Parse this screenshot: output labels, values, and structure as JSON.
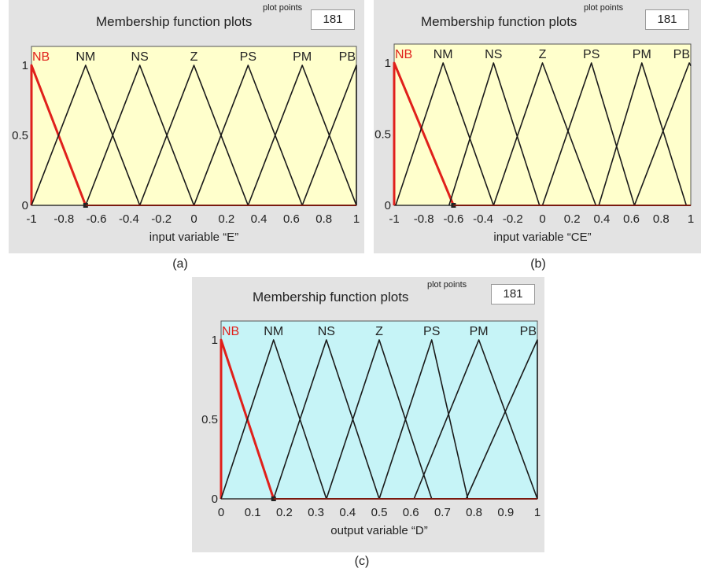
{
  "charts": [
    {
      "id": "a",
      "panel_title": "Membership function plots",
      "plot_points_label": "plot points",
      "plot_points_value": "181",
      "xlabel": "input variable “E”",
      "caption": "(a)",
      "background": "#ffffcc",
      "xticks": [
        "-1",
        "-0.8",
        "-0.6",
        "-0.4",
        "-0.2",
        "0",
        "0.2",
        "0.4",
        "0.6",
        "0.8",
        "1"
      ],
      "yticks": [
        "0",
        "0.5",
        "1"
      ]
    },
    {
      "id": "b",
      "panel_title": "Membership function plots",
      "plot_points_label": "plot points",
      "plot_points_value": "181",
      "xlabel": "input variable “CE”",
      "caption": "(b)",
      "background": "#ffffcc",
      "xticks": [
        "-1",
        "-0.8",
        "-0.6",
        "-0.4",
        "-0.2",
        "0",
        "0.2",
        "0.4",
        "0.6",
        "0.8",
        "1"
      ],
      "yticks": [
        "0",
        "0.5",
        "1"
      ]
    },
    {
      "id": "c",
      "panel_title": "Membership function plots",
      "plot_points_label": "plot points",
      "plot_points_value": "181",
      "xlabel": "output variable “D”",
      "caption": "(c)",
      "background": "#c6f4f7",
      "xticks": [
        "0",
        "0.1",
        "0.2",
        "0.3",
        "0.4",
        "0.5",
        "0.6",
        "0.7",
        "0.8",
        "0.9",
        "1"
      ],
      "yticks": [
        "0",
        "0.5",
        "1"
      ]
    }
  ],
  "chart_data": [
    {
      "type": "line",
      "title": "Membership function plots",
      "xlabel": "input variable “E”",
      "ylabel": "",
      "xlim": [
        -1,
        1
      ],
      "ylim": [
        0,
        1
      ],
      "highlight_color": "#e0201b",
      "line_color": "#1a1a1a",
      "series": [
        {
          "name": "NB",
          "x": [
            -1,
            -1,
            -0.6667
          ],
          "y": [
            0,
            1,
            0
          ],
          "highlighted": true
        },
        {
          "name": "NM",
          "x": [
            -1,
            -0.6667,
            -0.3333
          ],
          "y": [
            0,
            1,
            0
          ]
        },
        {
          "name": "NS",
          "x": [
            -0.6667,
            -0.3333,
            0
          ],
          "y": [
            0,
            1,
            0
          ]
        },
        {
          "name": "Z",
          "x": [
            -0.3333,
            0,
            0.3333
          ],
          "y": [
            0,
            1,
            0
          ]
        },
        {
          "name": "PS",
          "x": [
            0,
            0.3333,
            0.6667
          ],
          "y": [
            0,
            1,
            0
          ]
        },
        {
          "name": "PM",
          "x": [
            0.3333,
            0.6667,
            1
          ],
          "y": [
            0,
            1,
            0
          ]
        },
        {
          "name": "PB",
          "x": [
            0.6667,
            1,
            1
          ],
          "y": [
            0,
            1,
            0
          ]
        }
      ]
    },
    {
      "type": "line",
      "title": "Membership function plots",
      "xlabel": "input variable “CE”",
      "ylabel": "",
      "xlim": [
        -1,
        1
      ],
      "ylim": [
        0,
        1
      ],
      "highlight_color": "#e0201b",
      "line_color": "#1a1a1a",
      "series": [
        {
          "name": "NB",
          "x": [
            -1,
            -1,
            -0.6
          ],
          "y": [
            0,
            1,
            0
          ],
          "highlighted": true
        },
        {
          "name": "NM",
          "x": [
            -0.99,
            -0.67,
            -0.33
          ],
          "y": [
            0,
            1,
            0
          ]
        },
        {
          "name": "NS",
          "x": [
            -0.63,
            -0.33,
            -0.02
          ],
          "y": [
            0,
            1,
            0
          ]
        },
        {
          "name": "Z",
          "x": [
            -0.33,
            0,
            0.36
          ],
          "y": [
            0,
            1,
            0
          ]
        },
        {
          "name": "PS",
          "x": [
            0,
            0.33,
            0.62
          ],
          "y": [
            0,
            1,
            0
          ]
        },
        {
          "name": "PM",
          "x": [
            0.38,
            0.67,
            0.97
          ],
          "y": [
            0,
            1,
            0
          ]
        },
        {
          "name": "PB",
          "x": [
            0.62,
            0.99,
            1
          ],
          "y": [
            0,
            1,
            0.98
          ]
        }
      ]
    },
    {
      "type": "line",
      "title": "Membership function plots",
      "xlabel": "output variable “D”",
      "ylabel": "",
      "xlim": [
        0,
        1
      ],
      "ylim": [
        0,
        1
      ],
      "highlight_color": "#e0201b",
      "line_color": "#1a1a1a",
      "series": [
        {
          "name": "NB",
          "x": [
            0,
            0,
            0.166
          ],
          "y": [
            0,
            1,
            0
          ],
          "highlighted": true
        },
        {
          "name": "NM",
          "x": [
            0,
            0.166,
            0.333
          ],
          "y": [
            0,
            1,
            0
          ]
        },
        {
          "name": "NS",
          "x": [
            0.166,
            0.333,
            0.5
          ],
          "y": [
            0,
            1,
            0
          ]
        },
        {
          "name": "Z",
          "x": [
            0.333,
            0.5,
            0.666
          ],
          "y": [
            0,
            1,
            0
          ]
        },
        {
          "name": "PS",
          "x": [
            0.5,
            0.666,
            0.78
          ],
          "y": [
            0,
            1,
            0
          ]
        },
        {
          "name": "PM",
          "x": [
            0.61,
            0.815,
            1
          ],
          "y": [
            0,
            1,
            0
          ]
        },
        {
          "name": "PB",
          "x": [
            0.775,
            1,
            1
          ],
          "y": [
            0,
            1,
            0
          ]
        }
      ]
    }
  ]
}
